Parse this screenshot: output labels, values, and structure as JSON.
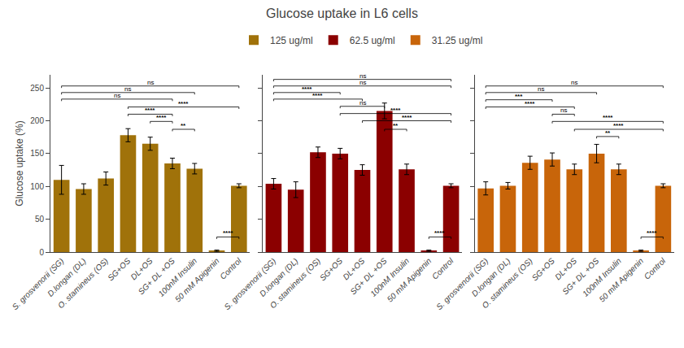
{
  "chart_data": [
    {
      "type": "bar",
      "title": "Glucose uptake in L6 cells",
      "ylabel": "Glucose uptake (%)",
      "legend": "top",
      "grid": false,
      "categories": [
        "S. grosvenorii (SG)",
        "D.longan (DL)",
        "O. stamineus (OS)",
        "SG+OS",
        "DL+OS",
        "SG+ DL +OS",
        "100nM Insulin",
        "50 mM Apigenin",
        "Control"
      ],
      "series": [
        {
          "name": "125 ug/ml",
          "color": "#A0720A",
          "values": [
            110,
            96,
            112,
            178,
            165,
            135,
            127,
            2,
            101
          ],
          "errors": [
            22,
            8,
            10,
            10,
            10,
            8,
            8,
            1,
            3
          ]
        }
      ],
      "ylim": [
        0,
        270
      ],
      "yticks": [
        0,
        50,
        100,
        150,
        200,
        250
      ],
      "annotations": [
        {
          "text": "ns",
          "x": [
            0,
            8
          ],
          "y": 250
        },
        {
          "text": "ns",
          "x": [
            0,
            6
          ],
          "y": 240
        },
        {
          "text": "ns",
          "x": [
            0,
            5
          ],
          "y": 230
        },
        {
          "text": "****",
          "x": [
            3,
            8
          ],
          "y": 218
        },
        {
          "text": "****",
          "x": [
            3,
            5
          ],
          "y": 207
        },
        {
          "text": "****",
          "x": [
            4,
            5
          ],
          "y": 196
        },
        {
          "text": "**",
          "x": [
            5,
            6
          ],
          "y": 184
        },
        {
          "text": "****",
          "x": [
            7,
            8
          ],
          "y": 20
        }
      ]
    },
    {
      "type": "bar",
      "grid": false,
      "tick_labels": "x",
      "categories": [
        "S. grosvenorii (SG)",
        "D.longan (DL)",
        "O. stamineus (OS)",
        "SG+OS",
        "DL+OS",
        "SG+ DL +OS",
        "100nM Insulin",
        "50 mM Apigenin",
        "Control"
      ],
      "series": [
        {
          "name": "62.5 ug/ml",
          "color": "#8B0000",
          "values": [
            104,
            95,
            152,
            150,
            125,
            215,
            126,
            2,
            101
          ],
          "errors": [
            8,
            12,
            8,
            8,
            8,
            12,
            8,
            1,
            3
          ]
        }
      ],
      "ylim": [
        0,
        270
      ],
      "yticks": [
        0,
        50,
        100,
        150,
        200,
        250
      ],
      "annotations": [
        {
          "text": "ns",
          "x": [
            0,
            8
          ],
          "y": 260
        },
        {
          "text": "ns",
          "x": [
            0,
            8
          ],
          "y": 250
        },
        {
          "text": "****",
          "x": [
            0,
            3
          ],
          "y": 240
        },
        {
          "text": "****",
          "x": [
            0,
            4
          ],
          "y": 230
        },
        {
          "text": "ns",
          "x": [
            3,
            5
          ],
          "y": 219
        },
        {
          "text": "****",
          "x": [
            3,
            8
          ],
          "y": 208
        },
        {
          "text": "****",
          "x": [
            4,
            8
          ],
          "y": 197
        },
        {
          "text": "**",
          "x": [
            5,
            6
          ],
          "y": 184
        },
        {
          "text": "****",
          "x": [
            7,
            8
          ],
          "y": 20
        }
      ]
    },
    {
      "type": "bar",
      "grid": false,
      "tick_labels": "x",
      "categories": [
        "S. grosvenorii (SG)",
        "D.longan (DL)",
        "O. stamineus (OS)",
        "SG+OS",
        "DL+OS",
        "SG+ DL +OS",
        "100nM Insulin",
        "50 mM Apigenin",
        "Control"
      ],
      "series": [
        {
          "name": "31.25 ug/ml",
          "color": "#C8650A",
          "values": [
            97,
            101,
            136,
            141,
            126,
            150,
            126,
            2,
            101
          ],
          "errors": [
            10,
            5,
            10,
            10,
            8,
            14,
            8,
            1,
            3
          ]
        }
      ],
      "ylim": [
        0,
        270
      ],
      "yticks": [
        0,
        50,
        100,
        150,
        200,
        250
      ],
      "annotations": [
        {
          "text": "ns",
          "x": [
            0,
            8
          ],
          "y": 250
        },
        {
          "text": "ns",
          "x": [
            0,
            5
          ],
          "y": 240
        },
        {
          "text": "***",
          "x": [
            0,
            3
          ],
          "y": 229
        },
        {
          "text": "****",
          "x": [
            0,
            4
          ],
          "y": 218
        },
        {
          "text": "ns",
          "x": [
            3,
            4
          ],
          "y": 207
        },
        {
          "text": "****",
          "x": [
            3,
            8
          ],
          "y": 196
        },
        {
          "text": "****",
          "x": [
            4,
            8
          ],
          "y": 184
        },
        {
          "text": "**",
          "x": [
            5,
            6
          ],
          "y": 173
        },
        {
          "text": "****",
          "x": [
            7,
            8
          ],
          "y": 20
        }
      ]
    }
  ]
}
